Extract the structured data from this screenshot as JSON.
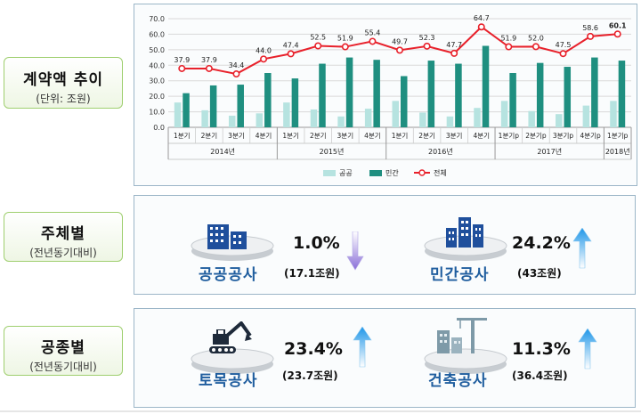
{
  "labels": {
    "trend": {
      "title": "계약액 추이",
      "sub": "(단위: 조원)"
    },
    "subject": {
      "title": "주체별",
      "sub": "(전년동기대비)"
    },
    "type": {
      "title": "공종별",
      "sub": "(전년동기대비)"
    }
  },
  "chart_data": {
    "type": "bar",
    "categories": [
      "1분기",
      "2분기",
      "3분기",
      "4분기",
      "1분기",
      "2분기",
      "3분기",
      "4분기",
      "1분기",
      "2분기",
      "3분기",
      "4분기",
      "1분기p",
      "2분기p",
      "3분기p",
      "4분기p",
      "1분기p"
    ],
    "year_groups": [
      "2014년",
      "2015년",
      "2016년",
      "2017년",
      "2018년"
    ],
    "series": [
      {
        "name": "공공",
        "values": [
          16,
          11,
          7.5,
          9,
          16,
          11.5,
          7,
          12,
          17,
          9.5,
          7,
          12.5,
          17,
          10.5,
          8.5,
          14,
          17
        ]
      },
      {
        "name": "민간",
        "values": [
          22,
          27,
          27.5,
          35,
          31.5,
          41,
          45,
          43.5,
          33,
          43,
          41,
          52.5,
          35,
          41.5,
          39,
          45,
          43
        ]
      },
      {
        "name": "전체",
        "values": [
          37.9,
          37.9,
          34.4,
          44.0,
          47.4,
          52.5,
          51.9,
          55.4,
          49.7,
          52.3,
          47.7,
          64.7,
          51.9,
          52.0,
          47.5,
          58.6,
          60.1
        ]
      }
    ],
    "line_labels": [
      "37.9",
      "37.9",
      "34.4",
      "44.0",
      "47.4",
      "52.5",
      "51.9",
      "55.4",
      "49.7",
      "52.3",
      "47.7",
      "64.7",
      "51.9",
      "52.0",
      "47.5",
      "58.6",
      "60.1"
    ],
    "ylim": [
      0,
      70
    ],
    "yticks": [
      "0.0",
      "10.0",
      "20.0",
      "30.0",
      "40.0",
      "50.0",
      "60.0",
      "70.0"
    ],
    "grid": true,
    "legend": "bottom",
    "colors": {
      "public": "#b6e3e0",
      "private": "#1f8f80",
      "total": "#e8212b"
    }
  },
  "subject": {
    "public": {
      "name": "공공공사",
      "pct": "1.0%",
      "amt": "(17.1조원)",
      "trend": "down",
      "icon": "building-icon"
    },
    "private": {
      "name": "민간공사",
      "pct": "24.2%",
      "amt": "(43조원)",
      "trend": "up",
      "icon": "city-buildings-icon"
    }
  },
  "type": {
    "civil": {
      "name": "토목공사",
      "pct": "23.4%",
      "amt": "(23.7조원)",
      "trend": "up",
      "icon": "excavator-icon"
    },
    "building": {
      "name": "건축공사",
      "pct": "11.3%",
      "amt": "(36.4조원)",
      "trend": "up",
      "icon": "construction-crane-icon"
    }
  }
}
